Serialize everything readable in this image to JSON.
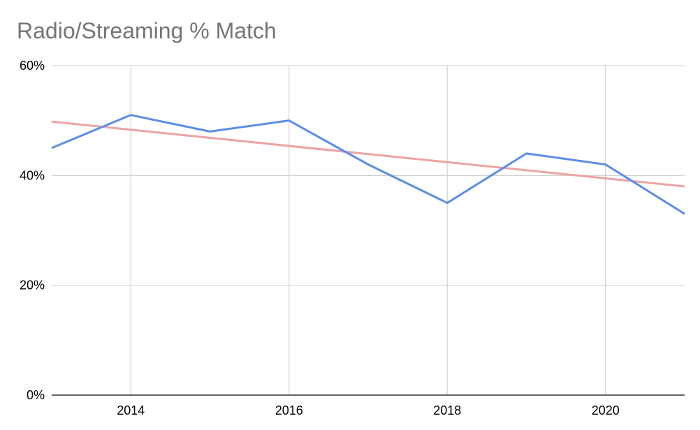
{
  "chart_data": {
    "type": "line",
    "title": "Radio/Streaming % Match",
    "xlabel": "",
    "ylabel": "",
    "x": [
      2013,
      2014,
      2015,
      2016,
      2017,
      2018,
      2019,
      2020,
      2021
    ],
    "xlim": [
      2013,
      2021
    ],
    "ylim": [
      0,
      60
    ],
    "x_ticks": [
      2014,
      2016,
      2018,
      2020
    ],
    "x_tick_labels": [
      "2014",
      "2016",
      "2018",
      "2020"
    ],
    "y_ticks": [
      0,
      20,
      40,
      60
    ],
    "y_tick_labels": [
      "0%",
      "20%",
      "40%",
      "60%"
    ],
    "grid": true,
    "legend": "none",
    "series": [
      {
        "values": [
          45,
          51,
          48,
          50,
          42,
          35,
          44,
          42,
          33
        ],
        "color": "#5b8ee6",
        "kind": "data"
      },
      {
        "values": [
          49.8,
          38.0
        ],
        "color": "#eda3a3",
        "kind": "trendline",
        "x": [
          2013,
          2021
        ]
      }
    ]
  }
}
